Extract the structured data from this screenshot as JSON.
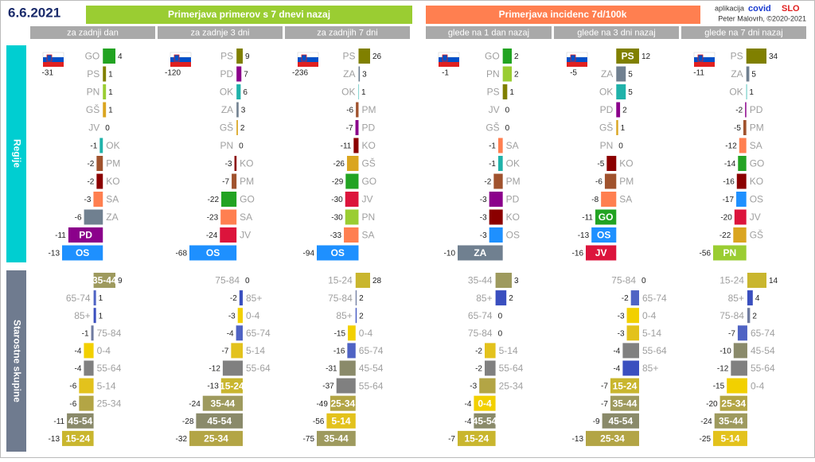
{
  "header": {
    "date": "6.6.2021",
    "group_titles": [
      "Primerjava primerov s 7 dnevi nazaj",
      "Primerjava incidenc 7d/100k"
    ],
    "app_label": "aplikacija",
    "app_name_1": "covid",
    "app_name_2": "SLO",
    "credit": "Peter Malovrh, ©2020-2021",
    "column_titles": [
      "za zadnji dan",
      "za zadnje 3 dni",
      "za zadnjih 7 dni",
      "glede na 1 dan nazaj",
      "glede na 3 dni nazaj",
      "glede na 7 dni nazaj"
    ],
    "row_titles": [
      "Regije",
      "Starostne skupine"
    ]
  },
  "palette": {
    "GO": "#22a322",
    "PS": "#808000",
    "PN": "#9acd32",
    "GŠ": "#daa520",
    "JV": "#dc143c",
    "OK": "#20b2aa",
    "PM": "#a0522d",
    "KO": "#8b0000",
    "SA": "#ff7f50",
    "ZA": "#708090",
    "PD": "#8b008b",
    "OS": "#1e90ff",
    "35-44": "#9e9a5e",
    "65-74": "#4f63c4",
    "85+": "#3a4fbf",
    "75-84": "#6f7ba0",
    "0-4": "#f2d000",
    "55-64": "#808080",
    "5-14": "#e3c21c",
    "25-34": "#b3a545",
    "45-54": "#8a8a6a",
    "15-24": "#c9b62e"
  },
  "chart_data": [
    {
      "type": "bar",
      "orientation": "horizontal",
      "total": -31,
      "categories": [
        "GO",
        "PS",
        "PN",
        "GŠ",
        "JV",
        "OK",
        "PM",
        "KO",
        "SA",
        "ZA",
        "PD",
        "OS"
      ],
      "values": [
        4,
        1,
        1,
        1,
        0,
        -1,
        -2,
        -2,
        -3,
        -6,
        -11,
        -13
      ]
    },
    {
      "type": "bar",
      "orientation": "horizontal",
      "total": -120,
      "categories": [
        "PS",
        "PD",
        "OK",
        "ZA",
        "GŠ",
        "PN",
        "KO",
        "PM",
        "GO",
        "SA",
        "JV",
        "OS"
      ],
      "values": [
        9,
        7,
        6,
        3,
        2,
        0,
        -3,
        -7,
        -22,
        -23,
        -24,
        -68
      ]
    },
    {
      "type": "bar",
      "orientation": "horizontal",
      "total": -236,
      "categories": [
        "PS",
        "ZA",
        "OK",
        "PM",
        "PD",
        "KO",
        "GŠ",
        "GO",
        "JV",
        "PN",
        "SA",
        "OS"
      ],
      "values": [
        26,
        3,
        1,
        -6,
        -7,
        -11,
        -26,
        -29,
        -30,
        -30,
        -33,
        -94
      ]
    },
    {
      "type": "bar",
      "orientation": "horizontal",
      "total": -1,
      "categories": [
        "GO",
        "PN",
        "PS",
        "JV",
        "GŠ",
        "SA",
        "OK",
        "PM",
        "PD",
        "KO",
        "OS",
        "ZA"
      ],
      "values": [
        2,
        2,
        1,
        0,
        0,
        -1,
        -1,
        -2,
        -3,
        -3,
        -3,
        -10
      ]
    },
    {
      "type": "bar",
      "orientation": "horizontal",
      "total": -5,
      "categories": [
        "PS",
        "ZA",
        "OK",
        "PD",
        "GŠ",
        "PN",
        "KO",
        "PM",
        "SA",
        "GO",
        "OS",
        "JV"
      ],
      "values": [
        12,
        5,
        5,
        2,
        1,
        0,
        -5,
        -6,
        -8,
        -11,
        -13,
        -16
      ]
    },
    {
      "type": "bar",
      "orientation": "horizontal",
      "total": -11,
      "categories": [
        "PS",
        "ZA",
        "OK",
        "PD",
        "PM",
        "SA",
        "GO",
        "KO",
        "OS",
        "JV",
        "GŠ",
        "PN"
      ],
      "values": [
        34,
        5,
        1,
        -2,
        -5,
        -12,
        -14,
        -16,
        -17,
        -20,
        -22,
        -56
      ]
    },
    {
      "type": "bar",
      "orientation": "horizontal",
      "categories": [
        "35-44",
        "65-74",
        "85+",
        "75-84",
        "0-4",
        "55-64",
        "5-14",
        "25-34",
        "45-54",
        "15-24"
      ],
      "values": [
        9,
        1,
        1,
        -1,
        -4,
        -4,
        -6,
        -6,
        -11,
        -13
      ]
    },
    {
      "type": "bar",
      "orientation": "horizontal",
      "categories": [
        "75-84",
        "85+",
        "0-4",
        "65-74",
        "5-14",
        "55-64",
        "15-24",
        "35-44",
        "45-54",
        "25-34"
      ],
      "values": [
        0,
        -2,
        -3,
        -4,
        -7,
        -12,
        -13,
        -24,
        -28,
        -32
      ]
    },
    {
      "type": "bar",
      "orientation": "horizontal",
      "categories": [
        "15-24",
        "75-84",
        "85+",
        "0-4",
        "65-74",
        "45-54",
        "55-64",
        "25-34",
        "5-14",
        "35-44"
      ],
      "values": [
        28,
        2,
        2,
        -15,
        -16,
        -31,
        -37,
        -49,
        -56,
        -75
      ]
    },
    {
      "type": "bar",
      "orientation": "horizontal",
      "categories": [
        "35-44",
        "85+",
        "65-74",
        "75-84",
        "5-14",
        "55-64",
        "25-34",
        "0-4",
        "45-54",
        "15-24"
      ],
      "values": [
        3,
        2,
        0,
        0,
        -2,
        -2,
        -3,
        -4,
        -4,
        -7
      ]
    },
    {
      "type": "bar",
      "orientation": "horizontal",
      "categories": [
        "75-84",
        "65-74",
        "0-4",
        "5-14",
        "55-64",
        "85+",
        "15-24",
        "35-44",
        "45-54",
        "25-34"
      ],
      "values": [
        0,
        -2,
        -3,
        -3,
        -4,
        -4,
        -7,
        -7,
        -9,
        -13
      ]
    },
    {
      "type": "bar",
      "orientation": "horizontal",
      "categories": [
        "15-24",
        "85+",
        "75-84",
        "65-74",
        "45-54",
        "55-64",
        "0-4",
        "25-34",
        "35-44",
        "5-14"
      ],
      "values": [
        14,
        4,
        2,
        -7,
        -10,
        -12,
        -15,
        -20,
        -24,
        -25
      ]
    }
  ]
}
